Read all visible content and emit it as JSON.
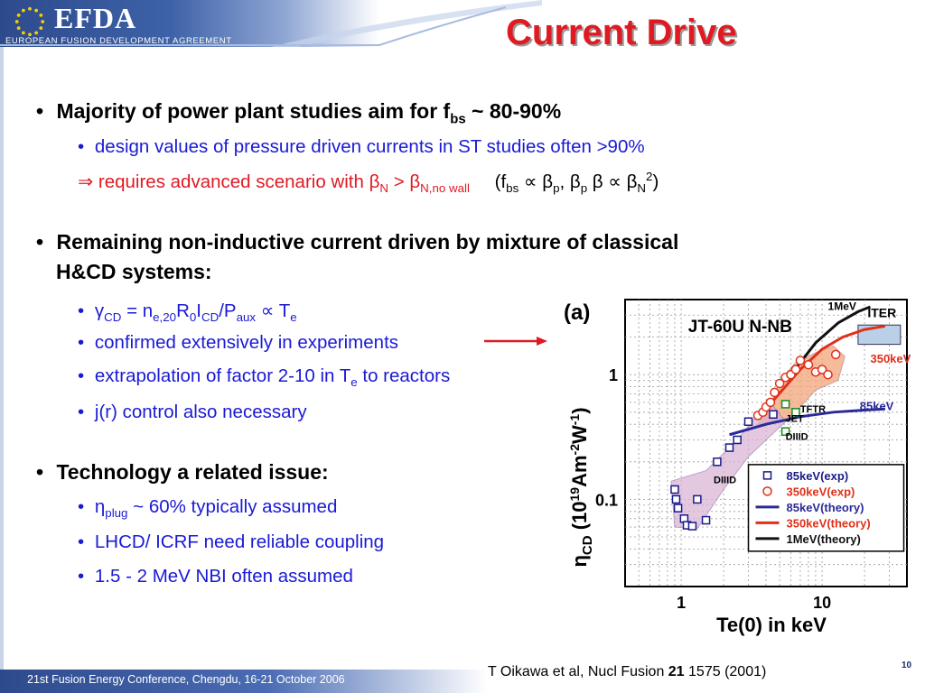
{
  "header": {
    "logo_text": "EFDA",
    "logo_subtitle": "EUROPEAN FUSION DEVELOPMENT AGREEMENT",
    "title": "Current Drive"
  },
  "colors": {
    "title": "#e01a22",
    "body_blue": "#1a1ad6",
    "header_blue": "#2d4a8c"
  },
  "bullets": {
    "b1_pre": "Majority of power plant studies aim for f",
    "b1_sub": "bs",
    "b1_post": " ~ 80-90%",
    "b1_s1": "design values of pressure driven currents in ST studies often >90%",
    "b1_s2_arrow": "⇒",
    "b1_s2_text": " requires advanced scenario with ",
    "beta": "β",
    "n_sub": "N",
    "gt": " > ",
    "n_nowall_sub": "N,no wall",
    "paren_open": "(f",
    "bs_sub": "bs",
    "prop": " ∝ ",
    "p_sub": "p",
    "comma": ",  ",
    "beta_p_beta": " β ",
    "n2_sub": "N",
    "sup2": "2",
    "paren_close": ")",
    "b2_line1": "Remaining non-inductive current driven by mixture of classical",
    "b2_line2": "H&CD systems:",
    "gamma": "γ",
    "cd_sub": "CD",
    "eq_n": " = n",
    "e20_sub": "e,20",
    "r": "R",
    "zero_sub": "0",
    "i": "I",
    "slash_p": "/P",
    "aux_sub": "aux",
    "t": " T",
    "e_sub": "e",
    "b2_s2": "confirmed extensively in experiments",
    "b2_s3_pre": "extrapolation of factor 2-10 in T",
    "b2_s3_post": " to reactors",
    "b2_s4": "j(r) control also necessary",
    "b3": "Technology a related issue:",
    "eta": "η",
    "plug_sub": "plug",
    "b3_s1_post": " ~ 60% typically assumed",
    "b3_s2": "LHCD/ ICRF need reliable coupling",
    "b3_s3": "1.5 - 2 MeV NBI often assumed",
    "bullet_char": "•"
  },
  "chart_data": {
    "type": "scatter",
    "panel_label": "(a)",
    "title": "JT-60U N-NB",
    "xlabel": "Te(0) in keV",
    "ylabel_eta": "η",
    "ylabel_sub": "CD",
    "ylabel_rest": " (10",
    "ylabel_sup1": "19",
    "ylabel_mid": "Am",
    "ylabel_sup2": "-2",
    "ylabel_w": "W",
    "ylabel_sup3": "-1",
    "ylabel_close": ")",
    "x_scale": "log",
    "y_scale": "log",
    "xlim": [
      0.4,
      40
    ],
    "ylim": [
      0.02,
      4
    ],
    "x_ticks": [
      {
        "v": 1,
        "label": "1"
      },
      {
        "v": 10,
        "label": "10"
      }
    ],
    "y_ticks": [
      {
        "v": 0.1,
        "label": "0.1"
      },
      {
        "v": 1,
        "label": "1"
      }
    ],
    "annotations": [
      "1MeV",
      "ITER",
      "350keV",
      "85keV",
      "TFTR",
      "JET",
      "DIIID",
      "DIIID"
    ],
    "series": [
      {
        "name": "85keV(exp)",
        "marker": "square",
        "color": "#1a1a8a",
        "points": [
          [
            0.9,
            0.12
          ],
          [
            0.92,
            0.1
          ],
          [
            0.95,
            0.085
          ],
          [
            1.05,
            0.07
          ],
          [
            1.1,
            0.062
          ],
          [
            1.2,
            0.061
          ],
          [
            1.5,
            0.068
          ],
          [
            1.3,
            0.1
          ],
          [
            1.8,
            0.2
          ],
          [
            2.2,
            0.26
          ],
          [
            2.5,
            0.3
          ],
          [
            3.0,
            0.42
          ],
          [
            4.5,
            0.48
          ]
        ]
      },
      {
        "name": "350keV(exp)",
        "marker": "circle",
        "color": "#e0301a",
        "points": [
          [
            3.5,
            0.47
          ],
          [
            3.8,
            0.5
          ],
          [
            4.0,
            0.55
          ],
          [
            4.3,
            0.6
          ],
          [
            4.6,
            0.72
          ],
          [
            5.0,
            0.85
          ],
          [
            5.5,
            0.95
          ],
          [
            6.0,
            1.0
          ],
          [
            6.5,
            1.1
          ],
          [
            7.0,
            1.3
          ],
          [
            8.0,
            1.2
          ],
          [
            9.0,
            1.05
          ],
          [
            10.0,
            1.1
          ],
          [
            11.0,
            1.0
          ],
          [
            12.5,
            1.45
          ]
        ]
      },
      {
        "name": "85keV(theory)",
        "line": true,
        "color": "#2a2a9a",
        "points": [
          [
            2.2,
            0.33
          ],
          [
            4,
            0.4
          ],
          [
            7,
            0.46
          ],
          [
            12,
            0.5
          ],
          [
            20,
            0.52
          ],
          [
            28,
            0.53
          ]
        ]
      },
      {
        "name": "350keV(theory)",
        "line": true,
        "color": "#e0301a",
        "points": [
          [
            4.5,
            0.62
          ],
          [
            7,
            1.1
          ],
          [
            10,
            1.6
          ],
          [
            14,
            2.0
          ],
          [
            20,
            2.3
          ],
          [
            28,
            2.45
          ]
        ]
      },
      {
        "name": "1MeV(theory)",
        "line": true,
        "color": "#111111",
        "points": [
          [
            6,
            1.0
          ],
          [
            9,
            1.8
          ],
          [
            13,
            2.6
          ],
          [
            18,
            3.2
          ],
          [
            22,
            3.5
          ]
        ]
      }
    ],
    "legend": [
      "85keV(exp)",
      "350keV(exp)",
      "85keV(theory)",
      "350keV(theory)",
      "1MeV(theory)"
    ],
    "legend_position": "bottom-right"
  },
  "footer": {
    "conference": "21st Fusion Energy Conference, Chengdu, 16-21 October 2006",
    "citation_pre": "T Oikawa et al, Nucl Fusion ",
    "citation_bold": "21",
    "citation_post": " 1575  (2001)",
    "page": "10"
  }
}
